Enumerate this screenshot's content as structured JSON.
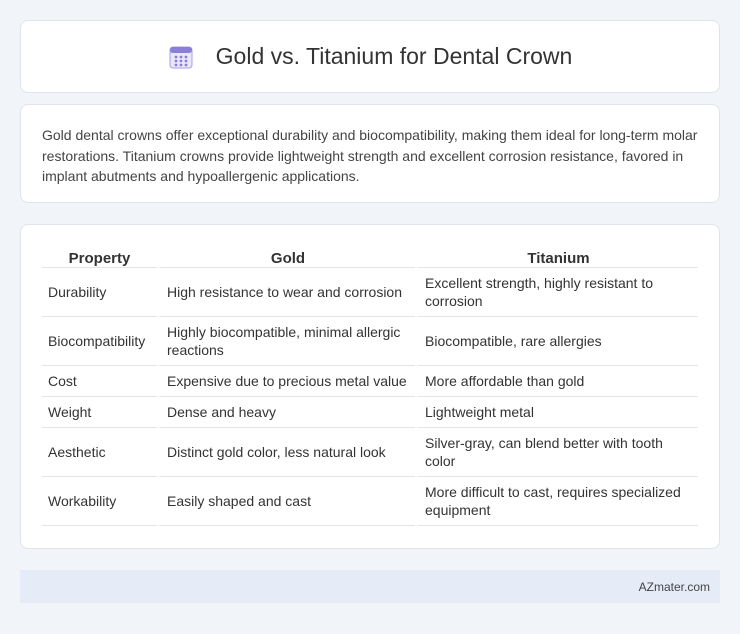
{
  "header": {
    "title": "Gold vs. Titanium for Dental Crown",
    "icon": "calendar-icon",
    "icon_color": "#8a7fd6"
  },
  "intro": {
    "text": "Gold dental crowns offer exceptional durability and biocompatibility, making them ideal for long-term molar restorations. Titanium crowns provide lightweight strength and excellent corrosion resistance, favored in implant abutments and hypoallergenic applications."
  },
  "table": {
    "headers": [
      "Property",
      "Gold",
      "Titanium"
    ],
    "rows": [
      [
        "Durability",
        "High resistance to wear and corrosion",
        "Excellent strength, highly resistant to corrosion"
      ],
      [
        "Biocompatibility",
        "Highly biocompatible, minimal allergic reactions",
        "Biocompatible, rare allergies"
      ],
      [
        "Cost",
        "Expensive due to precious metal value",
        "More affordable than gold"
      ],
      [
        "Weight",
        "Dense and heavy",
        "Lightweight metal"
      ],
      [
        "Aesthetic",
        "Distinct gold color, less natural look",
        "Silver-gray, can blend better with tooth color"
      ],
      [
        "Workability",
        "Easily shaped and cast",
        "More difficult to cast, requires specialized equipment"
      ]
    ]
  },
  "footer": {
    "text": "AZmater.com"
  }
}
